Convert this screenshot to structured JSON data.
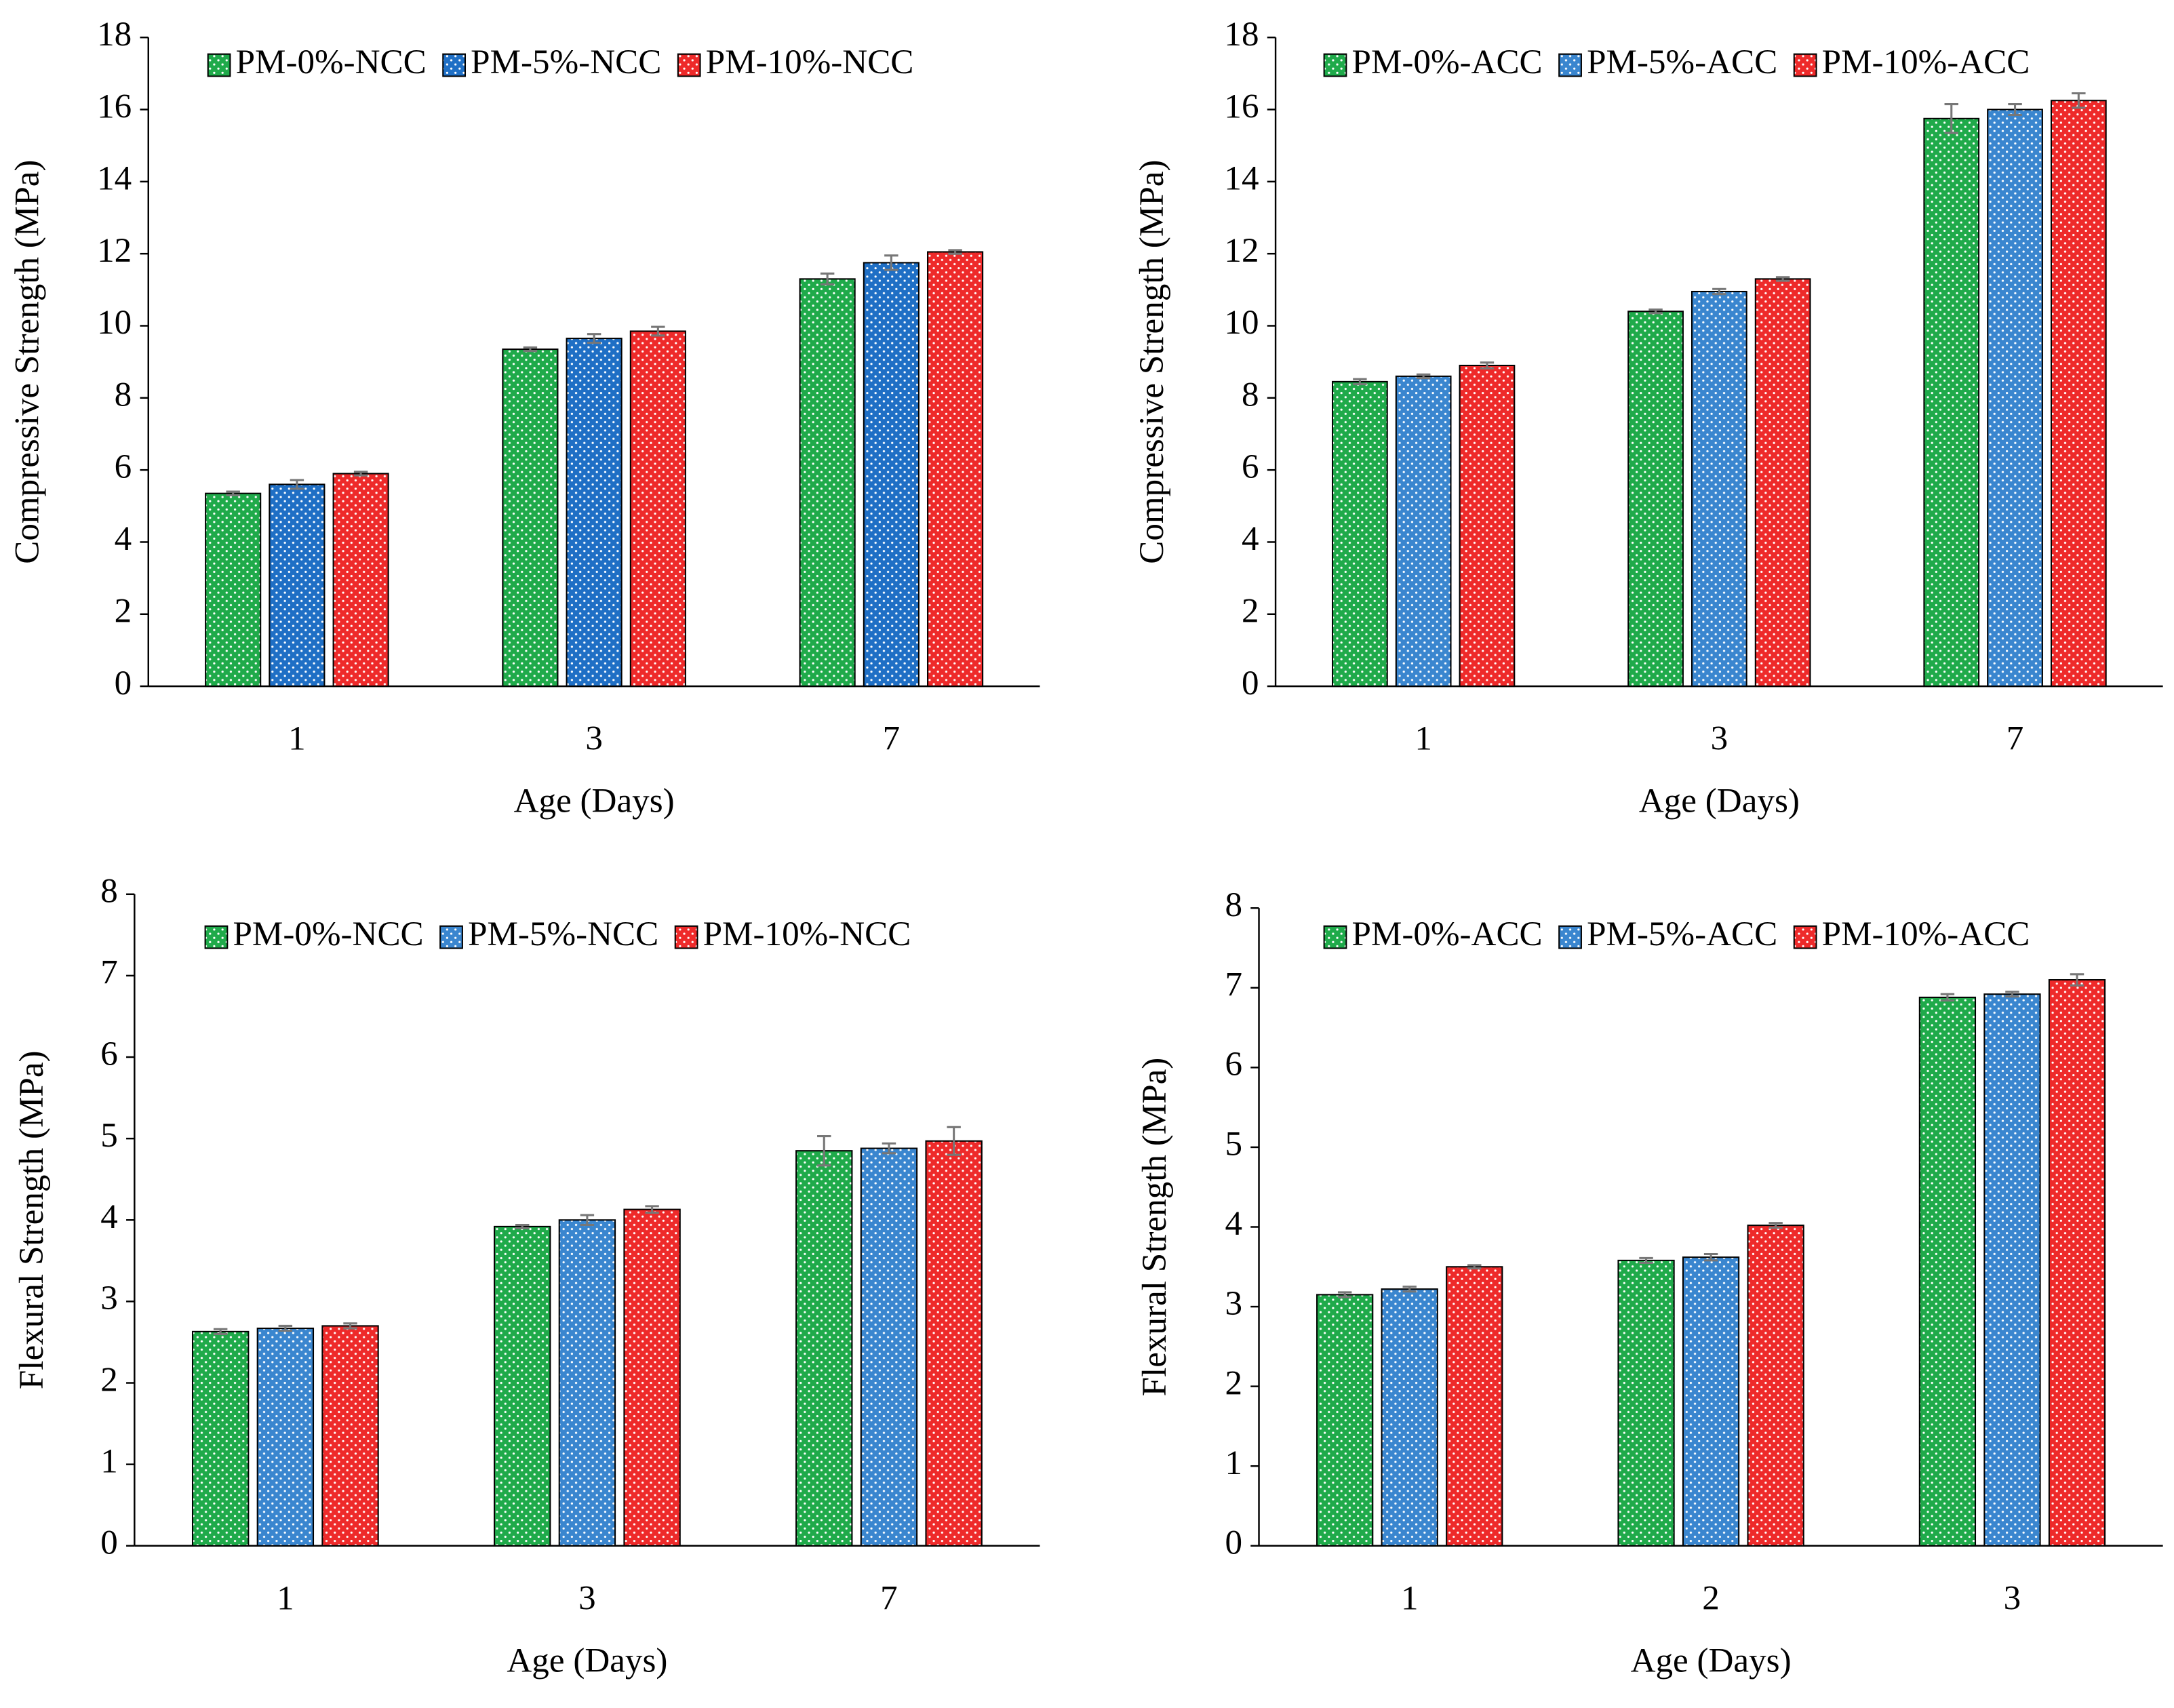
{
  "chart_data": [
    {
      "type": "bar",
      "ylabel": "Compressive Strength (MPa)",
      "xlabel": "Age (Days)",
      "categories": [
        "1",
        "3",
        "7"
      ],
      "ylim": [
        0,
        18
      ],
      "yticks": [
        0,
        2,
        4,
        6,
        8,
        10,
        12,
        14,
        16,
        18
      ],
      "legend": "top",
      "series": [
        {
          "name": "PM-0%-NCC",
          "color": "#1faa4a",
          "values": [
            5.35,
            9.35,
            11.3
          ],
          "errors": [
            0.05,
            0.05,
            0.15
          ]
        },
        {
          "name": "PM-5%-NCC",
          "color": "#1f6fc5",
          "values": [
            5.6,
            9.65,
            11.75
          ],
          "errors": [
            0.12,
            0.12,
            0.2
          ]
        },
        {
          "name": "PM-10%-NCC",
          "color": "#ee2a2a",
          "values": [
            5.9,
            9.85,
            12.05
          ],
          "errors": [
            0.05,
            0.12,
            0.05
          ]
        }
      ]
    },
    {
      "type": "bar",
      "ylabel": "Compressive Strength (MPa)",
      "xlabel": "Age (Days)",
      "categories": [
        "1",
        "3",
        "7"
      ],
      "ylim": [
        0,
        18
      ],
      "yticks": [
        0,
        2,
        4,
        6,
        8,
        10,
        12,
        14,
        16,
        18
      ],
      "legend": "top",
      "series": [
        {
          "name": "PM-0%-ACC",
          "color": "#1faa4a",
          "values": [
            8.45,
            10.4,
            15.75
          ],
          "errors": [
            0.07,
            0.05,
            0.4
          ]
        },
        {
          "name": "PM-5%-ACC",
          "color": "#3a86cf",
          "values": [
            8.6,
            10.95,
            16.0
          ],
          "errors": [
            0.05,
            0.07,
            0.15
          ]
        },
        {
          "name": "PM-10%-ACC",
          "color": "#ee2a2a",
          "values": [
            8.9,
            11.3,
            16.25
          ],
          "errors": [
            0.08,
            0.05,
            0.2
          ]
        }
      ]
    },
    {
      "type": "bar",
      "ylabel": "Flexural Strength (MPa)",
      "xlabel": "Age (Days)",
      "categories": [
        "1",
        "3",
        "7"
      ],
      "ylim": [
        0,
        8
      ],
      "yticks": [
        0,
        1,
        2,
        3,
        4,
        5,
        6,
        7,
        8
      ],
      "legend": "top",
      "series": [
        {
          "name": "PM-0%-NCC",
          "color": "#1faa4a",
          "values": [
            2.63,
            3.92,
            4.85
          ],
          "errors": [
            0.03,
            0.02,
            0.18
          ]
        },
        {
          "name": "PM-5%-NCC",
          "color": "#3a86cf",
          "values": [
            2.67,
            4.0,
            4.88
          ],
          "errors": [
            0.03,
            0.06,
            0.06
          ]
        },
        {
          "name": "PM-10%-NCC",
          "color": "#ee2a2a",
          "values": [
            2.7,
            4.13,
            4.97
          ],
          "errors": [
            0.03,
            0.04,
            0.17
          ]
        }
      ]
    },
    {
      "type": "bar",
      "ylabel": "Flexural Strength (MPa)",
      "xlabel": "Age (Days)",
      "categories": [
        "1",
        "2",
        "3"
      ],
      "ylim": [
        0,
        8
      ],
      "yticks": [
        0,
        1,
        2,
        3,
        4,
        5,
        6,
        7,
        8
      ],
      "legend": "top",
      "series": [
        {
          "name": "PM-0%-ACC",
          "color": "#1faa4a",
          "values": [
            3.15,
            3.58,
            6.88
          ],
          "errors": [
            0.03,
            0.03,
            0.04
          ]
        },
        {
          "name": "PM-5%-ACC",
          "color": "#3a86cf",
          "values": [
            3.22,
            3.62,
            6.92
          ],
          "errors": [
            0.03,
            0.04,
            0.03
          ]
        },
        {
          "name": "PM-10%-ACC",
          "color": "#ee2a2a",
          "values": [
            3.5,
            4.02,
            7.1
          ],
          "errors": [
            0.02,
            0.03,
            0.07
          ]
        }
      ]
    }
  ]
}
